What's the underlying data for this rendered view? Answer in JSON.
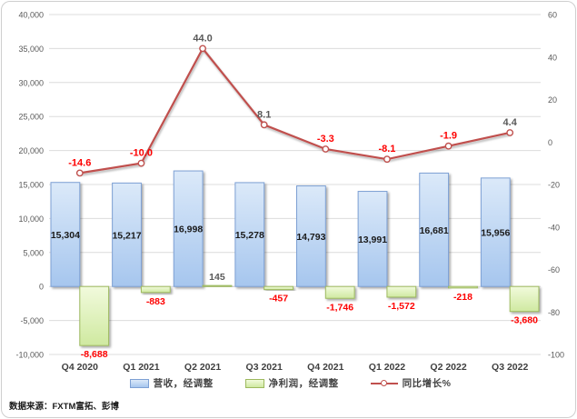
{
  "source_note": "数据来源：FXTM富拓、彭博",
  "legend": [
    {
      "label": "营收，经调整",
      "swatch": "revenue-bar"
    },
    {
      "label": "净利润，经调整",
      "swatch": "profit-bar"
    },
    {
      "label": "同比增长%",
      "swatch": "growth-line"
    }
  ],
  "colors": {
    "revenue_fill_top": "#dbe9f9",
    "revenue_fill_bottom": "#a6c6ee",
    "revenue_border": "#7da0d4",
    "profit_fill_top": "#f1fadc",
    "profit_fill_bottom": "#cfe9a0",
    "profit_border": "#9db95e",
    "growth_line": "#c0504d",
    "marker_fill": "#ffffff",
    "negative_label": "#fe0000",
    "positive_label": "#595959",
    "revenue_label": "#1a1a1a",
    "grid": "#dcdcdc",
    "axis_text": "#595959",
    "category_text": "#3f3f3f"
  },
  "chart_data": {
    "type": "bar+line (dual axis)",
    "title": "",
    "categories": [
      "Q4 2020",
      "Q1 2021",
      "Q2 2021",
      "Q3 2021",
      "Q4 2021",
      "Q1 2022",
      "Q2 2022",
      "Q3 2022"
    ],
    "series": [
      {
        "name": "营收，经调整",
        "type": "bar",
        "axis": "left",
        "values": [
          15304,
          15217,
          16998,
          15278,
          14793,
          13991,
          16681,
          15956
        ],
        "labels": [
          "15,304",
          "15,217",
          "16,998",
          "15,278",
          "14,793",
          "13,991",
          "16,681",
          "15,956"
        ]
      },
      {
        "name": "净利润，经调整",
        "type": "bar",
        "axis": "left",
        "values": [
          -8688,
          -883,
          145,
          -457,
          -1746,
          -1572,
          -218,
          -3680
        ],
        "labels": [
          "-8,688",
          "-883",
          "145",
          "-457",
          "-1,746",
          "-1,572",
          "-218",
          "-3,680"
        ]
      },
      {
        "name": "同比增长%",
        "type": "line",
        "axis": "right",
        "values": [
          -14.6,
          -10.0,
          44.0,
          8.1,
          -3.3,
          -8.1,
          -1.9,
          4.4
        ],
        "labels": [
          "-14.6",
          "-10.0",
          "44.0",
          "8.1",
          "-3.3",
          "-8.1",
          "-1.9",
          "4.4"
        ]
      }
    ],
    "left_axis": {
      "min": -10000,
      "max": 40000,
      "step": 5000,
      "tick_labels": [
        "40,000",
        "35,000",
        "30,000",
        "25,000",
        "20,000",
        "15,000",
        "10,000",
        "5,000",
        "0",
        "-5,000",
        "-10,000"
      ]
    },
    "right_axis": {
      "min": -100,
      "max": 60,
      "step": 20,
      "tick_labels": [
        "60",
        "40",
        "20",
        "0",
        "-20",
        "-40",
        "-60",
        "-80",
        "-100"
      ]
    },
    "grid": true,
    "legend_position": "bottom"
  }
}
